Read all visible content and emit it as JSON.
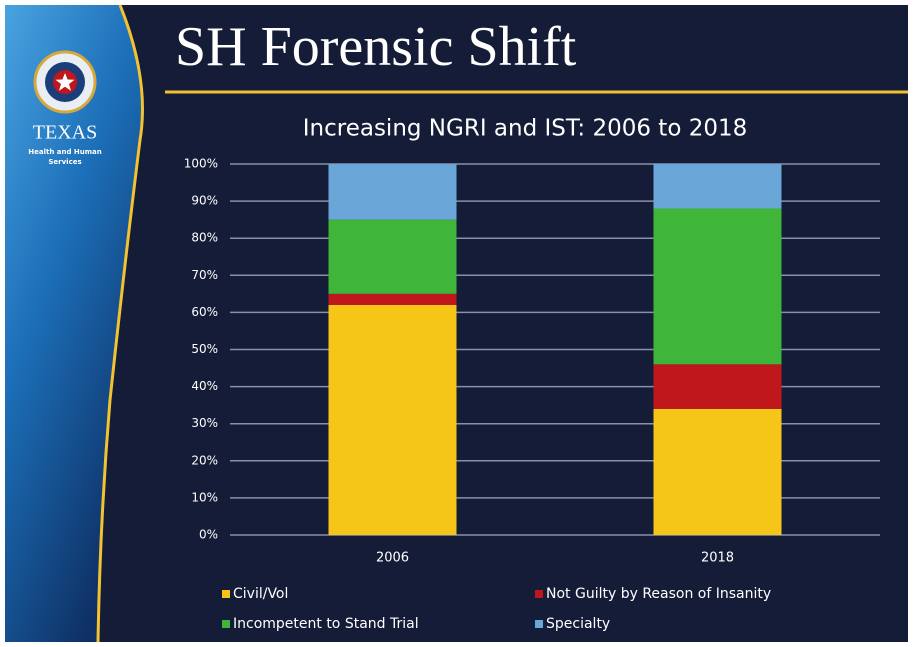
{
  "slide": {
    "title": "SH Forensic Shift",
    "logo_text": "TEXAS",
    "logo_subtext": [
      "Health and Human",
      "Services"
    ]
  },
  "chart_data": {
    "type": "stacked_bar",
    "title": "Increasing NGRI and IST: 2006 to 2018",
    "categories": [
      "2006",
      "2018"
    ],
    "series": [
      {
        "name": "Civil/Vol",
        "color": "#f5c518",
        "values": [
          62,
          34
        ]
      },
      {
        "name": "Not Guilty by Reason of Insanity",
        "color": "#c0171c",
        "values": [
          3,
          12
        ]
      },
      {
        "name": "Incompetent to Stand Trial",
        "color": "#3fb53a",
        "values": [
          20,
          42
        ]
      },
      {
        "name": "Specialty",
        "color": "#6aa7d8",
        "values": [
          15,
          12
        ]
      }
    ],
    "ylim": [
      0,
      100
    ],
    "yticks": [
      {
        "value": 0,
        "label": "0%"
      },
      {
        "value": 10,
        "label": "10%"
      },
      {
        "value": 20,
        "label": "20%"
      },
      {
        "value": 30,
        "label": "30%"
      },
      {
        "value": 40,
        "label": "40%"
      },
      {
        "value": 50,
        "label": "50%"
      },
      {
        "value": 60,
        "label": "60%"
      },
      {
        "value": 70,
        "label": "70%"
      },
      {
        "value": 80,
        "label": "80%"
      },
      {
        "value": 90,
        "label": "90%"
      },
      {
        "value": 100,
        "label": "100%"
      }
    ],
    "grid": true
  }
}
